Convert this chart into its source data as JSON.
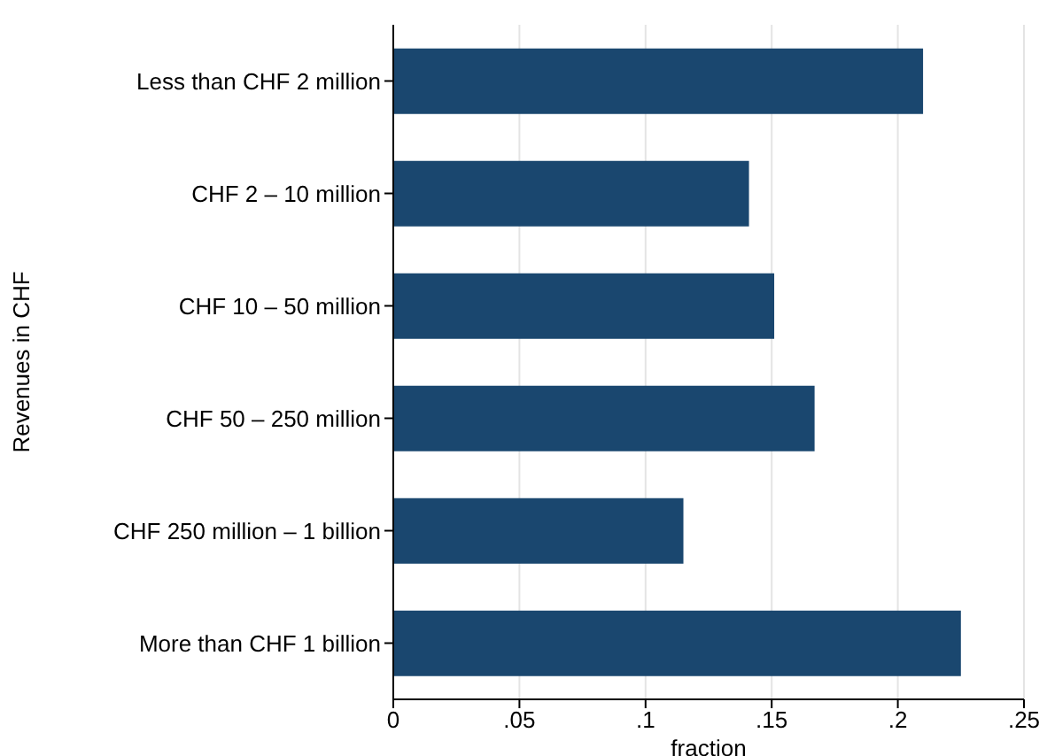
{
  "chart_data": {
    "type": "bar",
    "orientation": "horizontal",
    "ylabel": "Revenues in CHF",
    "xlabel": "fraction",
    "categories": [
      "Less than CHF 2 million",
      "CHF 2 – 10 million",
      "CHF 10 – 50 million",
      "CHF 50 – 250 million",
      "CHF 250 million – 1 billion",
      "More than CHF 1 billion"
    ],
    "values": [
      0.21,
      0.141,
      0.151,
      0.167,
      0.115,
      0.225
    ],
    "color": "#1a476f",
    "xlim": [
      0,
      0.25
    ],
    "xticks": [
      0,
      {
        "value": 0.05,
        "label": ".05"
      },
      {
        "value": 0.1,
        "label": ".1"
      },
      {
        "value": 0.15,
        "label": ".15"
      },
      {
        "value": 0.2,
        "label": ".2"
      },
      {
        "value": 0.25,
        "label": ".25"
      }
    ],
    "grid": "x",
    "legend": false
  }
}
